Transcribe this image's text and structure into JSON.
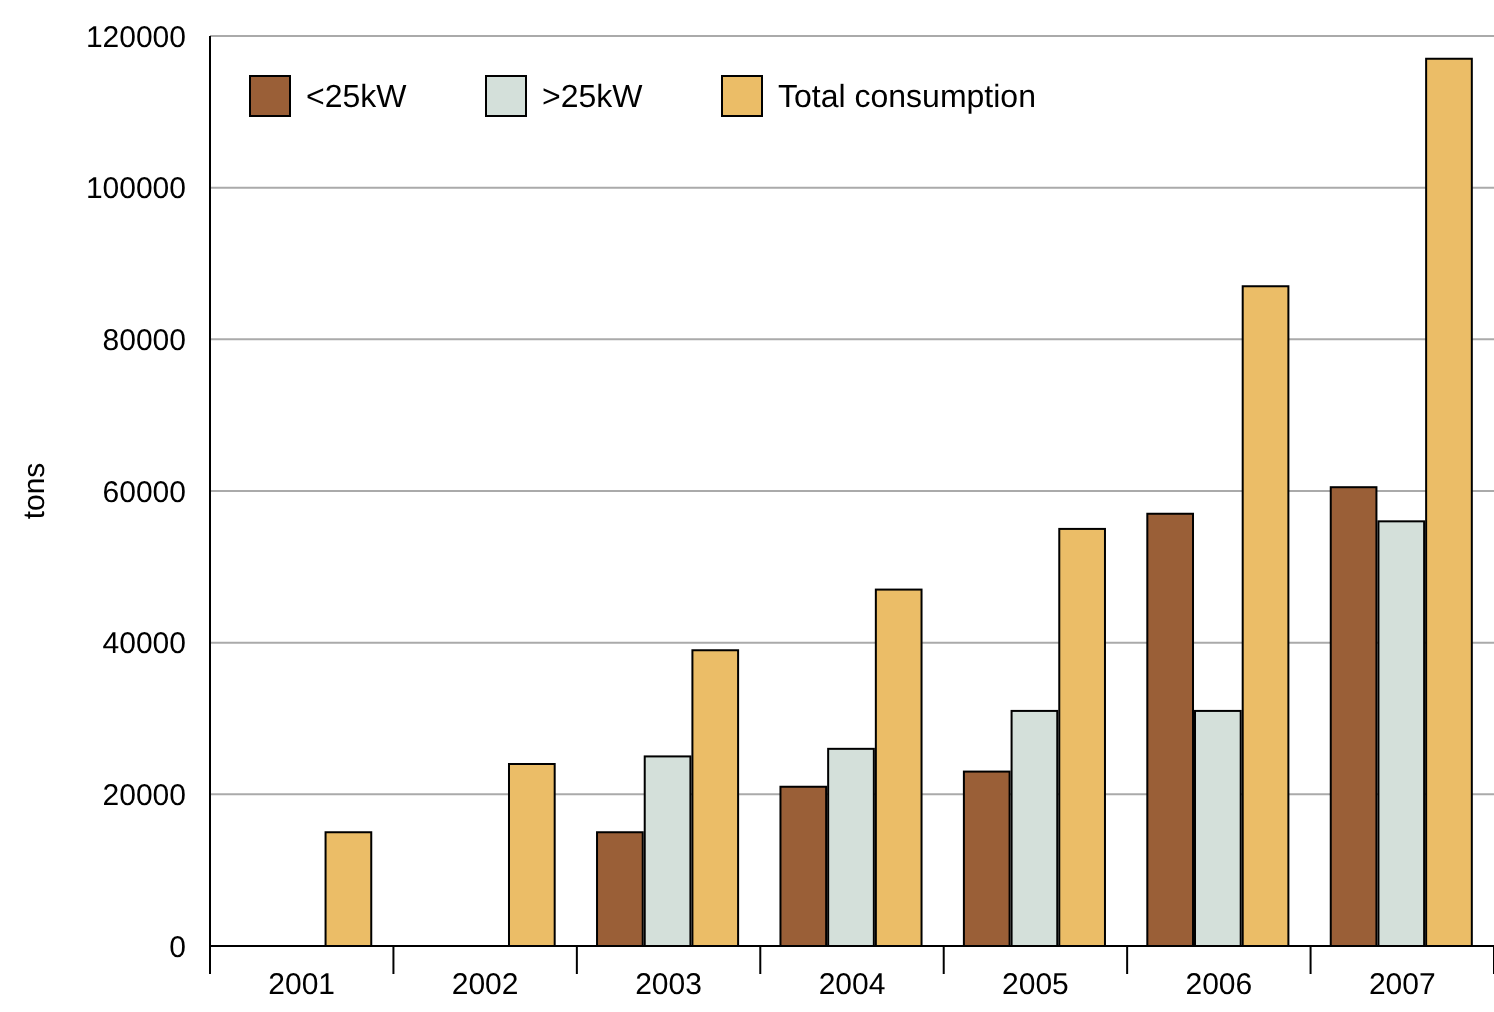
{
  "chart_data": {
    "type": "bar",
    "ylabel": "tons",
    "categories": [
      "2001",
      "2002",
      "2003",
      "2004",
      "2005",
      "2006",
      "2007"
    ],
    "series": [
      {
        "name": "<25kW",
        "color": "#9a5f37",
        "values": [
          null,
          null,
          15000,
          21000,
          23000,
          57000,
          60500
        ]
      },
      {
        "name": ">25kW",
        "color": "#d4e0da",
        "values": [
          null,
          null,
          25000,
          26000,
          31000,
          31000,
          56000
        ]
      },
      {
        "name": "Total consumption",
        "color": "#ebbd67",
        "values": [
          15000,
          24000,
          39000,
          47000,
          55000,
          87000,
          117000
        ]
      }
    ],
    "ylim": [
      0,
      120000
    ],
    "yticks": [
      0,
      20000,
      40000,
      60000,
      80000,
      100000,
      120000
    ],
    "grid": "y",
    "legend": "top left"
  }
}
